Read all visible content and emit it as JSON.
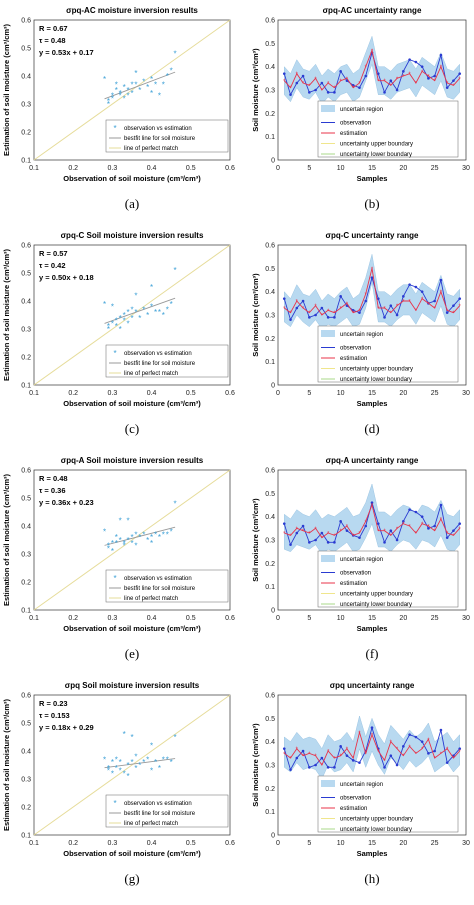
{
  "colors": {
    "scatter": "#3a9fd6",
    "bestfit": "#e48a8a",
    "perfect": "#e6dc9a",
    "band": "#b8d9f0",
    "band_edge": "#9cc5e3",
    "observation": "#2a3bd1",
    "estimation": "#e8334a",
    "upper": "#f0e68c",
    "lower": "#a8d98a"
  },
  "chart_data": [
    {
      "type": "scatter",
      "panel": "a",
      "caption": "(a)",
      "title": "σpq-AC moisture inversion results",
      "xlabel": "Observation of soil moisture (cm³/cm³)",
      "ylabel": "Estimation of soil moisture (cm³/cm³)",
      "xlim": [
        0.1,
        0.6
      ],
      "ylim": [
        0.1,
        0.6
      ],
      "stats": [
        "R = 0.67",
        "τ = 0.48",
        "y = 0.53x + 0.17"
      ],
      "legend": [
        "observation vs estimation",
        "bestfit line for soil moisture",
        "line of perfect match"
      ],
      "fit": {
        "slope": 0.53,
        "intercept": 0.17,
        "x_range": [
          0.28,
          0.46
        ]
      },
      "points": [
        [
          0.28,
          0.39
        ],
        [
          0.29,
          0.31
        ],
        [
          0.29,
          0.3
        ],
        [
          0.3,
          0.32
        ],
        [
          0.3,
          0.33
        ],
        [
          0.31,
          0.35
        ],
        [
          0.31,
          0.37
        ],
        [
          0.32,
          0.34
        ],
        [
          0.32,
          0.33
        ],
        [
          0.33,
          0.36
        ],
        [
          0.33,
          0.32
        ],
        [
          0.34,
          0.35
        ],
        [
          0.34,
          0.33
        ],
        [
          0.35,
          0.34
        ],
        [
          0.35,
          0.37
        ],
        [
          0.36,
          0.37
        ],
        [
          0.36,
          0.41
        ],
        [
          0.37,
          0.35
        ],
        [
          0.38,
          0.38
        ],
        [
          0.39,
          0.36
        ],
        [
          0.4,
          0.39
        ],
        [
          0.4,
          0.34
        ],
        [
          0.41,
          0.37
        ],
        [
          0.42,
          0.33
        ],
        [
          0.43,
          0.37
        ],
        [
          0.45,
          0.42
        ],
        [
          0.46,
          0.48
        ],
        [
          0.44,
          0.4
        ]
      ]
    },
    {
      "type": "band-line",
      "panel": "b",
      "caption": "(b)",
      "title": "σpq-AC uncertainty range",
      "xlabel": "Samples",
      "ylabel": "Soil moisture (cm³/cm³)",
      "xlim": [
        0,
        30
      ],
      "ylim": [
        0,
        0.6
      ],
      "legend": [
        "uncertain region",
        "observation",
        "estimation",
        "uncertainty upper boundary",
        "uncertainty lower boundary"
      ],
      "x": [
        1,
        2,
        3,
        4,
        5,
        6,
        7,
        8,
        9,
        10,
        11,
        12,
        13,
        14,
        15,
        16,
        17,
        18,
        19,
        20,
        21,
        22,
        23,
        24,
        25,
        26,
        27,
        28,
        29
      ],
      "observation": [
        0.37,
        0.28,
        0.33,
        0.36,
        0.29,
        0.3,
        0.33,
        0.29,
        0.29,
        0.38,
        0.34,
        0.32,
        0.31,
        0.36,
        0.46,
        0.37,
        0.29,
        0.34,
        0.3,
        0.38,
        0.43,
        0.42,
        0.4,
        0.35,
        0.36,
        0.45,
        0.31,
        0.34,
        0.37
      ],
      "estimation": [
        0.34,
        0.31,
        0.37,
        0.33,
        0.32,
        0.35,
        0.3,
        0.33,
        0.31,
        0.34,
        0.35,
        0.31,
        0.33,
        0.4,
        0.47,
        0.34,
        0.34,
        0.32,
        0.35,
        0.36,
        0.37,
        0.33,
        0.38,
        0.36,
        0.34,
        0.4,
        0.33,
        0.32,
        0.35
      ],
      "upper": [
        0.4,
        0.37,
        0.43,
        0.39,
        0.38,
        0.41,
        0.36,
        0.39,
        0.37,
        0.4,
        0.41,
        0.37,
        0.39,
        0.46,
        0.53,
        0.4,
        0.4,
        0.38,
        0.41,
        0.42,
        0.43,
        0.39,
        0.44,
        0.42,
        0.4,
        0.46,
        0.39,
        0.38,
        0.41
      ],
      "lower": [
        0.28,
        0.25,
        0.31,
        0.27,
        0.26,
        0.29,
        0.24,
        0.27,
        0.25,
        0.28,
        0.29,
        0.25,
        0.27,
        0.34,
        0.41,
        0.28,
        0.28,
        0.26,
        0.29,
        0.3,
        0.31,
        0.27,
        0.32,
        0.3,
        0.28,
        0.34,
        0.27,
        0.26,
        0.29
      ]
    },
    {
      "type": "scatter",
      "panel": "c",
      "caption": "(c)",
      "title": "σpq-C Soil moisture inversion results",
      "xlabel": "Observation of soil moisture (cm³/cm³)",
      "ylabel": "Estimation of soil moisture (cm³/cm³)",
      "xlim": [
        0.1,
        0.6
      ],
      "ylim": [
        0.1,
        0.6
      ],
      "stats": [
        "R = 0.57",
        "τ = 0.42",
        "y = 0.50x + 0.18"
      ],
      "legend": [
        "observation vs estimation",
        "bestfit line for soil moisture",
        "line of perfect match"
      ],
      "fit": {
        "slope": 0.5,
        "intercept": 0.18,
        "x_range": [
          0.28,
          0.46
        ]
      },
      "points": [
        [
          0.28,
          0.39
        ],
        [
          0.29,
          0.31
        ],
        [
          0.29,
          0.3
        ],
        [
          0.3,
          0.32
        ],
        [
          0.3,
          0.38
        ],
        [
          0.31,
          0.31
        ],
        [
          0.31,
          0.33
        ],
        [
          0.32,
          0.34
        ],
        [
          0.32,
          0.3
        ],
        [
          0.33,
          0.35
        ],
        [
          0.33,
          0.33
        ],
        [
          0.34,
          0.36
        ],
        [
          0.34,
          0.32
        ],
        [
          0.35,
          0.34
        ],
        [
          0.35,
          0.37
        ],
        [
          0.36,
          0.36
        ],
        [
          0.36,
          0.42
        ],
        [
          0.37,
          0.34
        ],
        [
          0.38,
          0.37
        ],
        [
          0.39,
          0.35
        ],
        [
          0.4,
          0.38
        ],
        [
          0.4,
          0.45
        ],
        [
          0.41,
          0.36
        ],
        [
          0.42,
          0.36
        ],
        [
          0.43,
          0.35
        ],
        [
          0.45,
          0.39
        ],
        [
          0.46,
          0.51
        ],
        [
          0.44,
          0.37
        ]
      ]
    },
    {
      "type": "band-line",
      "panel": "d",
      "caption": "(d)",
      "title": "σpq-C uncertainty range",
      "xlabel": "Samples",
      "ylabel": "Soil moisture (cm³/cm³)",
      "xlim": [
        0,
        30
      ],
      "ylim": [
        0,
        0.6
      ],
      "legend": [
        "uncertain region",
        "observation",
        "estimation",
        "uncertainty upper boundary",
        "uncertainty lower boundary"
      ],
      "x": [
        1,
        2,
        3,
        4,
        5,
        6,
        7,
        8,
        9,
        10,
        11,
        12,
        13,
        14,
        15,
        16,
        17,
        18,
        19,
        20,
        21,
        22,
        23,
        24,
        25,
        26,
        27,
        28,
        29
      ],
      "observation": [
        0.37,
        0.28,
        0.33,
        0.36,
        0.29,
        0.3,
        0.33,
        0.29,
        0.29,
        0.38,
        0.34,
        0.32,
        0.31,
        0.36,
        0.46,
        0.37,
        0.29,
        0.34,
        0.3,
        0.38,
        0.43,
        0.42,
        0.4,
        0.35,
        0.36,
        0.45,
        0.31,
        0.34,
        0.37
      ],
      "estimation": [
        0.33,
        0.31,
        0.36,
        0.33,
        0.31,
        0.34,
        0.3,
        0.32,
        0.31,
        0.33,
        0.35,
        0.31,
        0.32,
        0.39,
        0.5,
        0.33,
        0.33,
        0.31,
        0.34,
        0.36,
        0.36,
        0.32,
        0.37,
        0.35,
        0.33,
        0.4,
        0.32,
        0.31,
        0.34
      ],
      "upper": [
        0.4,
        0.37,
        0.43,
        0.39,
        0.38,
        0.41,
        0.36,
        0.39,
        0.37,
        0.4,
        0.42,
        0.37,
        0.39,
        0.46,
        0.56,
        0.4,
        0.4,
        0.38,
        0.41,
        0.43,
        0.43,
        0.39,
        0.44,
        0.42,
        0.4,
        0.47,
        0.39,
        0.38,
        0.41
      ],
      "lower": [
        0.27,
        0.25,
        0.3,
        0.27,
        0.25,
        0.28,
        0.24,
        0.26,
        0.25,
        0.27,
        0.29,
        0.25,
        0.26,
        0.33,
        0.44,
        0.27,
        0.27,
        0.25,
        0.28,
        0.3,
        0.3,
        0.26,
        0.31,
        0.29,
        0.27,
        0.34,
        0.26,
        0.25,
        0.28
      ]
    },
    {
      "type": "scatter",
      "panel": "e",
      "caption": "(e)",
      "title": "σpq-A Soil moisture inversion results",
      "xlabel": "Observation of soil moisture (cm³/cm³)",
      "ylabel": "Estimation of soil moisture (cm³/cm³)",
      "xlim": [
        0.1,
        0.6
      ],
      "ylim": [
        0.1,
        0.6
      ],
      "stats": [
        "R = 0.48",
        "τ = 0.36",
        "y = 0.36x + 0.23"
      ],
      "legend": [
        "observation vs estimation",
        "bestfit line for soil moisture",
        "line of perfect match"
      ],
      "fit": {
        "slope": 0.36,
        "intercept": 0.23,
        "x_range": [
          0.28,
          0.46
        ]
      },
      "points": [
        [
          0.28,
          0.38
        ],
        [
          0.29,
          0.33
        ],
        [
          0.29,
          0.32
        ],
        [
          0.3,
          0.34
        ],
        [
          0.3,
          0.31
        ],
        [
          0.31,
          0.34
        ],
        [
          0.31,
          0.36
        ],
        [
          0.32,
          0.35
        ],
        [
          0.32,
          0.42
        ],
        [
          0.33,
          0.34
        ],
        [
          0.33,
          0.33
        ],
        [
          0.34,
          0.35
        ],
        [
          0.34,
          0.42
        ],
        [
          0.35,
          0.34
        ],
        [
          0.35,
          0.36
        ],
        [
          0.36,
          0.37
        ],
        [
          0.36,
          0.33
        ],
        [
          0.37,
          0.36
        ],
        [
          0.38,
          0.37
        ],
        [
          0.39,
          0.35
        ],
        [
          0.4,
          0.36
        ],
        [
          0.4,
          0.34
        ],
        [
          0.41,
          0.37
        ],
        [
          0.42,
          0.36
        ],
        [
          0.43,
          0.37
        ],
        [
          0.45,
          0.38
        ],
        [
          0.46,
          0.48
        ],
        [
          0.44,
          0.37
        ]
      ]
    },
    {
      "type": "band-line",
      "panel": "f",
      "caption": "(f)",
      "title": "σpq-A uncertainty range",
      "xlabel": "Samples",
      "ylabel": "Soil moisture (cm³/cm³)",
      "xlim": [
        0,
        30
      ],
      "ylim": [
        0,
        0.6
      ],
      "legend": [
        "uncertain region",
        "observation",
        "estimation",
        "uncertainty upper boundary",
        "uncertainty lower boundary"
      ],
      "x": [
        1,
        2,
        3,
        4,
        5,
        6,
        7,
        8,
        9,
        10,
        11,
        12,
        13,
        14,
        15,
        16,
        17,
        18,
        19,
        20,
        21,
        22,
        23,
        24,
        25,
        26,
        27,
        28,
        29
      ],
      "observation": [
        0.37,
        0.28,
        0.33,
        0.36,
        0.29,
        0.3,
        0.33,
        0.29,
        0.29,
        0.38,
        0.34,
        0.32,
        0.31,
        0.36,
        0.46,
        0.37,
        0.29,
        0.34,
        0.3,
        0.38,
        0.43,
        0.42,
        0.4,
        0.35,
        0.36,
        0.45,
        0.31,
        0.34,
        0.37
      ],
      "estimation": [
        0.33,
        0.32,
        0.35,
        0.34,
        0.33,
        0.35,
        0.31,
        0.33,
        0.32,
        0.34,
        0.36,
        0.32,
        0.33,
        0.38,
        0.45,
        0.34,
        0.34,
        0.32,
        0.35,
        0.37,
        0.36,
        0.33,
        0.37,
        0.36,
        0.34,
        0.39,
        0.33,
        0.32,
        0.35
      ],
      "upper": [
        0.41,
        0.39,
        0.43,
        0.41,
        0.4,
        0.43,
        0.39,
        0.41,
        0.4,
        0.42,
        0.44,
        0.4,
        0.41,
        0.46,
        0.54,
        0.42,
        0.42,
        0.4,
        0.43,
        0.45,
        0.44,
        0.41,
        0.45,
        0.44,
        0.42,
        0.47,
        0.41,
        0.4,
        0.43
      ],
      "lower": [
        0.26,
        0.25,
        0.28,
        0.27,
        0.26,
        0.28,
        0.24,
        0.26,
        0.25,
        0.27,
        0.29,
        0.25,
        0.26,
        0.31,
        0.37,
        0.27,
        0.27,
        0.25,
        0.28,
        0.3,
        0.29,
        0.26,
        0.3,
        0.29,
        0.27,
        0.32,
        0.26,
        0.25,
        0.28
      ]
    },
    {
      "type": "scatter",
      "panel": "g",
      "caption": "(g)",
      "title": "σpq Soil moisture inversion results",
      "xlabel": "Observation of soil moisture (cm³/cm³)",
      "ylabel": "Estimation of soil moisture (cm³/cm³)",
      "xlim": [
        0.1,
        0.6
      ],
      "ylim": [
        0.1,
        0.6
      ],
      "stats": [
        "R = 0.23",
        "τ = 0.153",
        "y = 0.18x + 0.29"
      ],
      "legend": [
        "observation vs estimation",
        "bestfit line for soil moisture",
        "line of perfect match"
      ],
      "fit": {
        "slope": 0.18,
        "intercept": 0.29,
        "x_range": [
          0.28,
          0.46
        ]
      },
      "points": [
        [
          0.28,
          0.37
        ],
        [
          0.29,
          0.34
        ],
        [
          0.29,
          0.33
        ],
        [
          0.3,
          0.36
        ],
        [
          0.3,
          0.32
        ],
        [
          0.31,
          0.37
        ],
        [
          0.31,
          0.34
        ],
        [
          0.32,
          0.36
        ],
        [
          0.32,
          0.33
        ],
        [
          0.33,
          0.46
        ],
        [
          0.33,
          0.32
        ],
        [
          0.34,
          0.35
        ],
        [
          0.34,
          0.31
        ],
        [
          0.35,
          0.45
        ],
        [
          0.35,
          0.36
        ],
        [
          0.36,
          0.34
        ],
        [
          0.36,
          0.38
        ],
        [
          0.37,
          0.35
        ],
        [
          0.38,
          0.36
        ],
        [
          0.39,
          0.37
        ],
        [
          0.4,
          0.33
        ],
        [
          0.4,
          0.42
        ],
        [
          0.41,
          0.36
        ],
        [
          0.42,
          0.34
        ],
        [
          0.43,
          0.37
        ],
        [
          0.45,
          0.36
        ],
        [
          0.46,
          0.45
        ],
        [
          0.44,
          0.37
        ]
      ]
    },
    {
      "type": "band-line",
      "panel": "h",
      "caption": "(h)",
      "title": "σpq uncertainty range",
      "xlabel": "Samples",
      "ylabel": "Soil moisture (cm³/cm³)",
      "xlim": [
        0,
        30
      ],
      "ylim": [
        0,
        0.6
      ],
      "legend": [
        "uncertain region",
        "observation",
        "estimation",
        "uncertainty upper boundary",
        "uncertainty lower boundary"
      ],
      "x": [
        1,
        2,
        3,
        4,
        5,
        6,
        7,
        8,
        9,
        10,
        11,
        12,
        13,
        14,
        15,
        16,
        17,
        18,
        19,
        20,
        21,
        22,
        23,
        24,
        25,
        26,
        27,
        28,
        29
      ],
      "observation": [
        0.37,
        0.28,
        0.33,
        0.36,
        0.29,
        0.3,
        0.33,
        0.29,
        0.29,
        0.38,
        0.34,
        0.32,
        0.31,
        0.36,
        0.46,
        0.37,
        0.29,
        0.34,
        0.3,
        0.38,
        0.43,
        0.42,
        0.4,
        0.35,
        0.36,
        0.45,
        0.31,
        0.34,
        0.37
      ],
      "estimation": [
        0.35,
        0.33,
        0.37,
        0.34,
        0.35,
        0.34,
        0.3,
        0.36,
        0.33,
        0.34,
        0.37,
        0.33,
        0.44,
        0.35,
        0.43,
        0.36,
        0.32,
        0.4,
        0.37,
        0.34,
        0.38,
        0.35,
        0.37,
        0.41,
        0.33,
        0.35,
        0.37,
        0.33,
        0.36
      ],
      "upper": [
        0.42,
        0.4,
        0.44,
        0.41,
        0.42,
        0.41,
        0.37,
        0.43,
        0.4,
        0.41,
        0.44,
        0.4,
        0.51,
        0.42,
        0.5,
        0.43,
        0.39,
        0.47,
        0.44,
        0.41,
        0.45,
        0.42,
        0.44,
        0.48,
        0.4,
        0.42,
        0.44,
        0.4,
        0.43
      ],
      "lower": [
        0.29,
        0.27,
        0.31,
        0.28,
        0.29,
        0.28,
        0.24,
        0.3,
        0.27,
        0.28,
        0.31,
        0.27,
        0.37,
        0.29,
        0.36,
        0.3,
        0.26,
        0.33,
        0.31,
        0.28,
        0.32,
        0.29,
        0.31,
        0.34,
        0.27,
        0.29,
        0.31,
        0.27,
        0.3
      ]
    }
  ]
}
